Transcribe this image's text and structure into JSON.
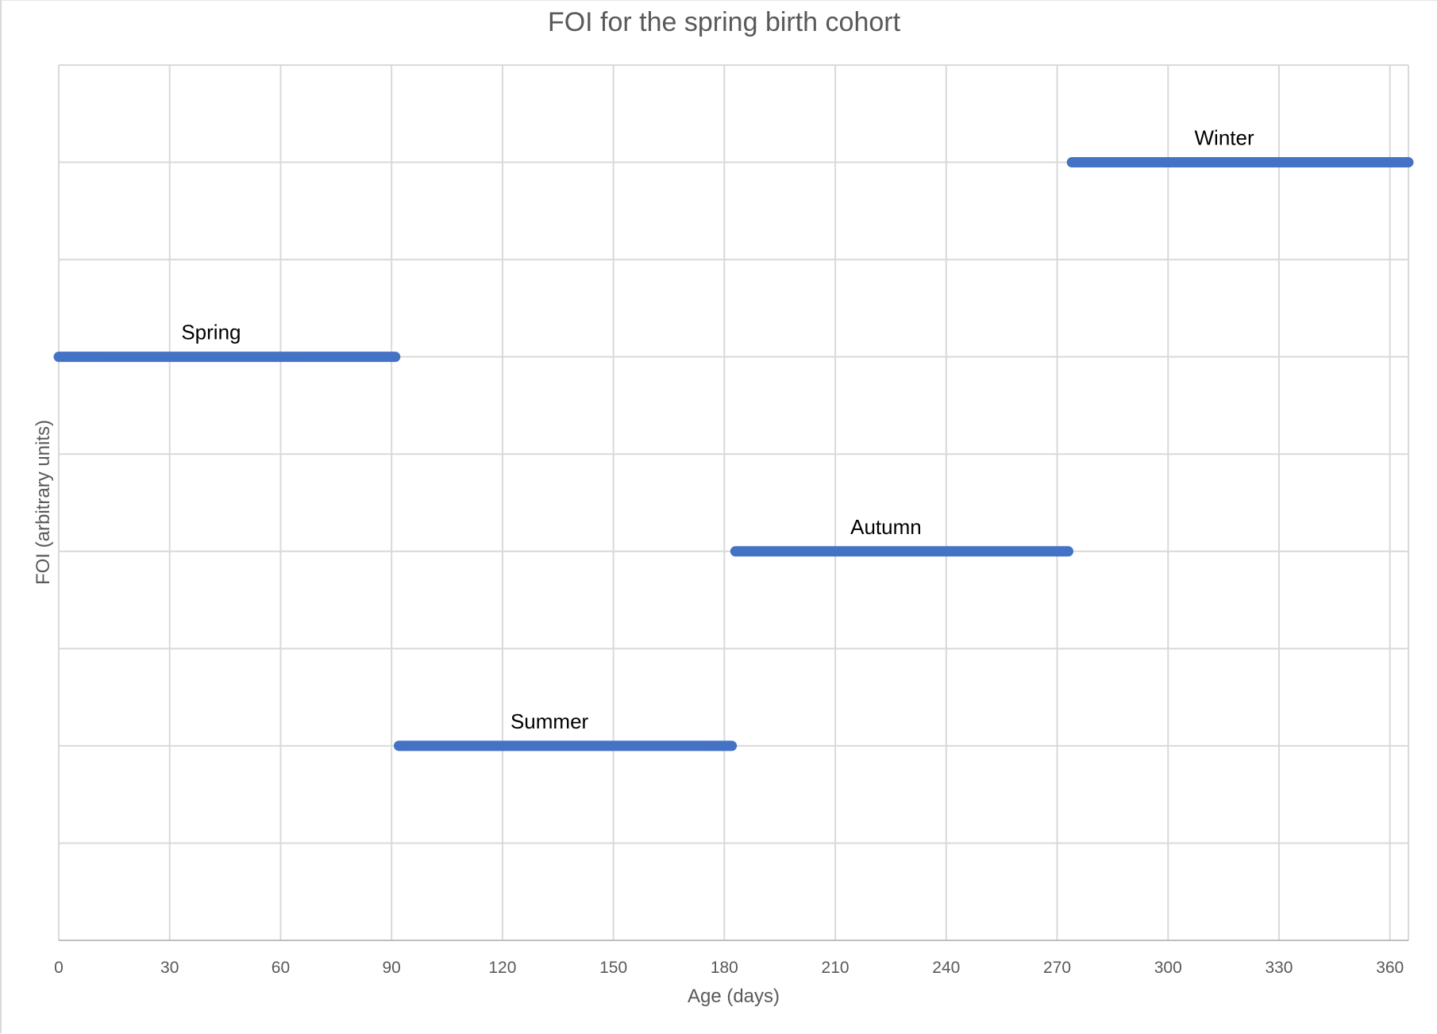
{
  "chart_data": {
    "type": "line",
    "title": "FOI for the spring birth cohort",
    "xlabel": "Age (days)",
    "ylabel": "FOI (arbitrary units)",
    "xlim": [
      0,
      365
    ],
    "x_ticks": [
      0,
      30,
      60,
      90,
      120,
      150,
      180,
      210,
      240,
      270,
      300,
      330,
      360
    ],
    "ylim": [
      0,
      9
    ],
    "y_gridlines": [
      1,
      2,
      3,
      4,
      5,
      6,
      7,
      8,
      9
    ],
    "y_tick_labels_shown": false,
    "grid": true,
    "legend": "none",
    "line_color": "#4472C4",
    "series": [
      {
        "label": "Spring",
        "x": [
          0,
          91
        ],
        "y": [
          6,
          6
        ]
      },
      {
        "label": "Summer",
        "x": [
          92,
          182
        ],
        "y": [
          2,
          2
        ]
      },
      {
        "label": "Autumn",
        "x": [
          183,
          273
        ],
        "y": [
          4,
          4
        ]
      },
      {
        "label": "Winter",
        "x": [
          274,
          365
        ],
        "y": [
          8,
          8
        ]
      }
    ]
  }
}
